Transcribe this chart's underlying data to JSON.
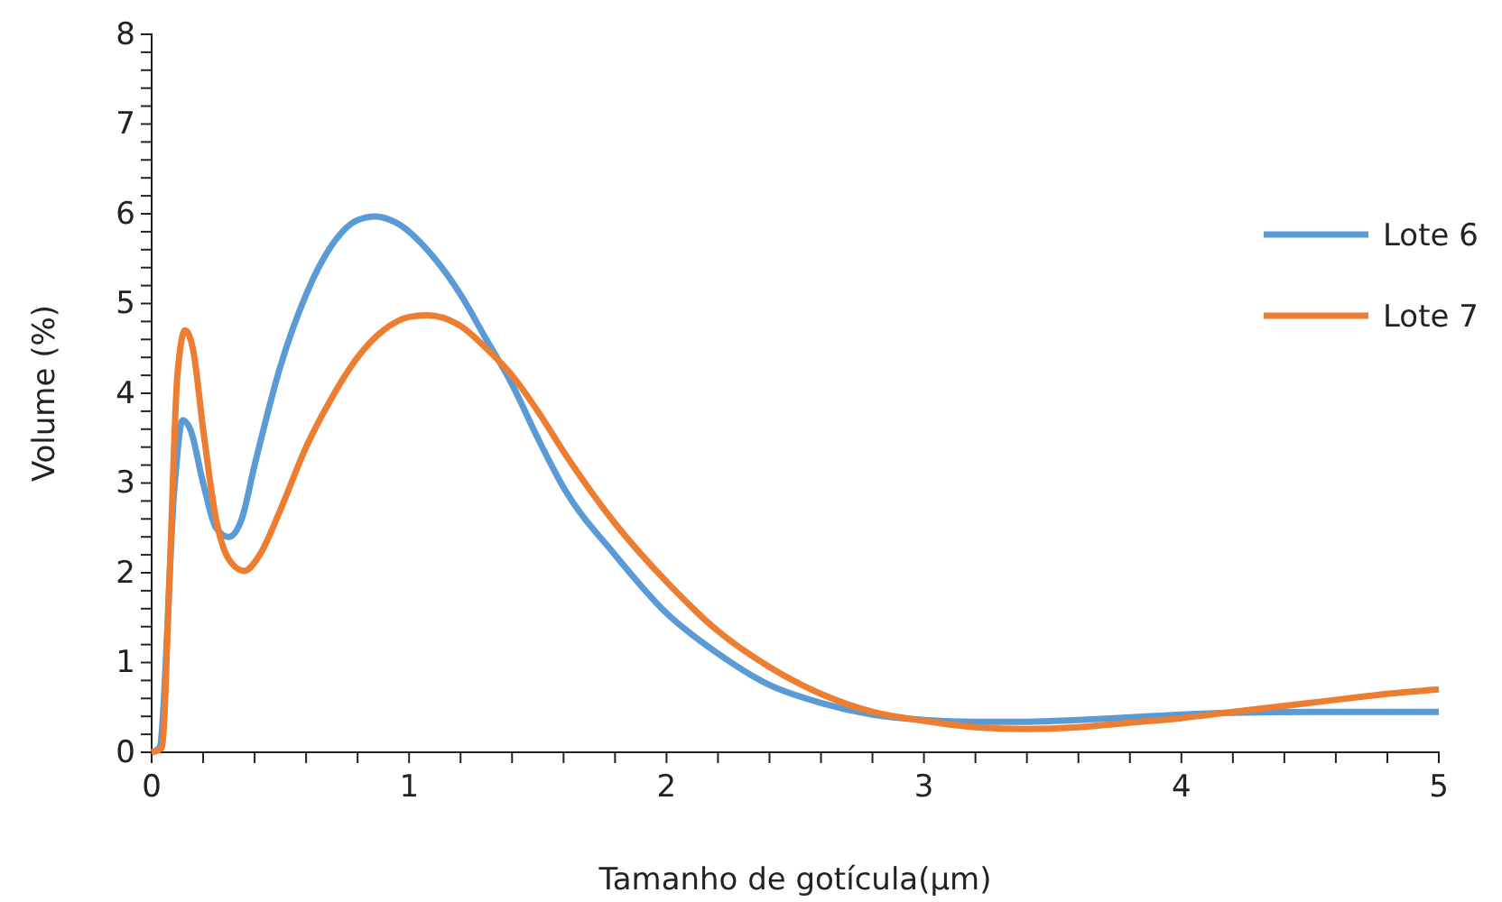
{
  "chart_data": {
    "type": "line",
    "xlabel": "Tamanho de gotícula(µm)",
    "ylabel": "Volume (%)",
    "xlim": [
      0,
      5
    ],
    "ylim": [
      0,
      8
    ],
    "xticks": [
      0,
      {
        "value": 0.2,
        "label": null
      },
      {
        "value": 0.4,
        "label": null
      },
      {
        "value": 0.6,
        "label": null
      },
      {
        "value": 0.8,
        "label": null
      },
      1,
      {
        "value": 1.2,
        "label": null
      },
      {
        "value": 1.4,
        "label": null
      },
      {
        "value": 1.6,
        "label": null
      },
      {
        "value": 1.8,
        "label": null
      },
      2,
      {
        "value": 2.2,
        "label": null
      },
      {
        "value": 2.4,
        "label": null
      },
      {
        "value": 2.6,
        "label": null
      },
      {
        "value": 2.8,
        "label": null
      },
      3,
      {
        "value": 3.2,
        "label": null
      },
      {
        "value": 3.4,
        "label": null
      },
      {
        "value": 3.6,
        "label": null
      },
      {
        "value": 3.8,
        "label": null
      },
      4,
      {
        "value": 4.2,
        "label": null
      },
      {
        "value": 4.4,
        "label": null
      },
      {
        "value": 4.6,
        "label": null
      },
      {
        "value": 4.8,
        "label": null
      },
      5
    ],
    "yticks": [
      0,
      {
        "value": 0.2,
        "label": null
      },
      {
        "value": 0.4,
        "label": null
      },
      {
        "value": 0.6,
        "label": null
      },
      {
        "value": 0.8,
        "label": null
      },
      1,
      {
        "value": 1.2,
        "label": null
      },
      {
        "value": 1.4,
        "label": null
      },
      {
        "value": 1.6,
        "label": null
      },
      {
        "value": 1.8,
        "label": null
      },
      2,
      {
        "value": 2.2,
        "label": null
      },
      {
        "value": 2.4,
        "label": null
      },
      {
        "value": 2.6,
        "label": null
      },
      {
        "value": 2.8,
        "label": null
      },
      3,
      {
        "value": 3.2,
        "label": null
      },
      {
        "value": 3.4,
        "label": null
      },
      {
        "value": 3.6,
        "label": null
      },
      {
        "value": 3.8,
        "label": null
      },
      4,
      {
        "value": 4.2,
        "label": null
      },
      {
        "value": 4.4,
        "label": null
      },
      {
        "value": 4.6,
        "label": null
      },
      {
        "value": 4.8,
        "label": null
      },
      5,
      {
        "value": 5.2,
        "label": null
      },
      {
        "value": 5.4,
        "label": null
      },
      {
        "value": 5.6,
        "label": null
      },
      {
        "value": 5.8,
        "label": null
      },
      6,
      {
        "value": 6.2,
        "label": null
      },
      {
        "value": 6.4,
        "label": null
      },
      {
        "value": 6.6,
        "label": null
      },
      {
        "value": 6.8,
        "label": null
      },
      7,
      {
        "value": 7.2,
        "label": null
      },
      {
        "value": 7.4,
        "label": null
      },
      {
        "value": 7.6,
        "label": null
      },
      {
        "value": 7.8,
        "label": null
      },
      8
    ],
    "grid": false,
    "legend": "right",
    "marker": "none",
    "line_style": "solid",
    "series": [
      {
        "name": "Lote 6",
        "color": "#5b9bd5",
        "x": [
          0,
          0.03,
          0.09,
          0.12,
          0.15,
          0.2,
          0.25,
          0.3,
          0.35,
          0.4,
          0.5,
          0.6,
          0.7,
          0.8,
          0.87,
          0.95,
          1.1,
          1.2,
          1.3,
          1.4,
          1.5,
          1.6,
          1.8,
          2.0,
          2.2,
          2.4,
          2.6,
          2.8,
          3.0,
          3.2,
          3.4,
          3.6,
          3.8,
          4.0,
          4.2,
          4.5,
          5
        ],
        "values": [
          0,
          0.05,
          3.0,
          3.7,
          3.6,
          3.0,
          2.5,
          2.4,
          2.6,
          3.2,
          4.3,
          5.1,
          5.65,
          5.93,
          5.97,
          5.9,
          5.5,
          5.1,
          4.6,
          4.1,
          3.5,
          2.95,
          2.2,
          1.55,
          1.1,
          0.75,
          0.55,
          0.42,
          0.36,
          0.34,
          0.34,
          0.36,
          0.39,
          0.42,
          0.44,
          0.45,
          0.45
        ]
      },
      {
        "name": "Lote 7",
        "color": "#ed7d31",
        "x": [
          0,
          0.04,
          0.07,
          0.1,
          0.13,
          0.16,
          0.2,
          0.25,
          0.3,
          0.36,
          0.42,
          0.5,
          0.6,
          0.7,
          0.8,
          0.9,
          1.0,
          1.07,
          1.2,
          1.3,
          1.4,
          1.5,
          1.6,
          1.8,
          2.0,
          2.2,
          2.4,
          2.6,
          2.8,
          3.0,
          3.2,
          3.4,
          3.6,
          3.8,
          4.0,
          4.2,
          4.5,
          4.8,
          5
        ],
        "values": [
          0,
          0.05,
          2.0,
          4.2,
          4.7,
          4.5,
          3.6,
          2.6,
          2.15,
          2.02,
          2.2,
          2.7,
          3.4,
          3.95,
          4.4,
          4.7,
          4.85,
          4.87,
          4.75,
          4.5,
          4.2,
          3.8,
          3.35,
          2.55,
          1.9,
          1.35,
          0.95,
          0.65,
          0.45,
          0.35,
          0.28,
          0.26,
          0.28,
          0.33,
          0.38,
          0.45,
          0.55,
          0.65,
          0.7
        ]
      }
    ]
  }
}
